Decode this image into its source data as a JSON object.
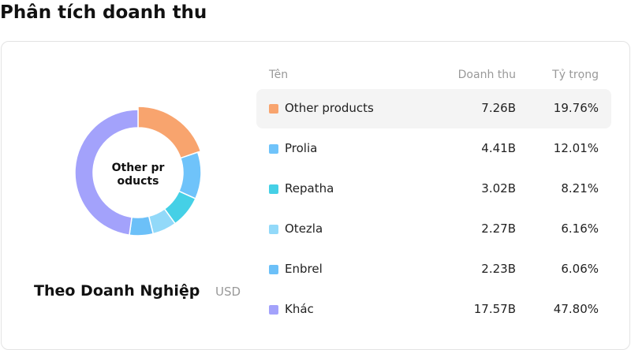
{
  "title": "Phân tích doanh thu",
  "chart_data": {
    "type": "pie",
    "subtitle": "Theo Doanh Nghiệp",
    "unit": "USD",
    "columns": [
      "Tên",
      "Doanh thu",
      "Tỷ trọng"
    ],
    "categories": [
      "Other products",
      "Prolia",
      "Repatha",
      "Otezla",
      "Enbrel",
      "Khác"
    ],
    "values": [
      19.76,
      12.01,
      8.21,
      6.16,
      6.06,
      47.8
    ],
    "value_labels": [
      "19.76%",
      "12.01%",
      "8.21%",
      "6.16%",
      "6.06%",
      "47.80%"
    ],
    "revenue": [
      "7.26B",
      "4.41B",
      "3.02B",
      "2.27B",
      "2.23B",
      "17.57B"
    ],
    "colors": [
      "#f8a46e",
      "#6fc3fa",
      "#45d0e6",
      "#92d9f9",
      "#6cc0f8",
      "#a3a2fb"
    ]
  }
}
